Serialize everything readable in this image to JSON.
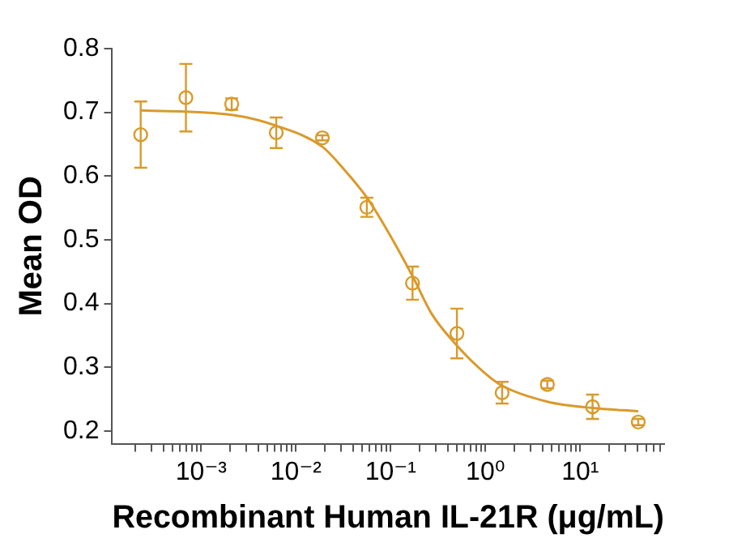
{
  "chart_data": {
    "type": "scatter",
    "xlabel": "Recombinant Human IL-21R (μg/mL)",
    "ylabel": "Mean OD",
    "log": "x",
    "grid": false,
    "legend": false,
    "xlim": [
      0.000115,
      77
    ],
    "ylim": [
      0.18,
      0.8
    ],
    "xticks": [
      {
        "value": 0.0002,
        "label": null
      },
      {
        "value": 0.0003,
        "label": null
      },
      {
        "value": 0.0004,
        "label": null
      },
      {
        "value": 0.0005,
        "label": null
      },
      {
        "value": 0.0006,
        "label": null
      },
      {
        "value": 0.0007,
        "label": null
      },
      {
        "value": 0.0008,
        "label": null
      },
      {
        "value": 0.0009,
        "label": null
      },
      {
        "value": 0.001,
        "label": "10⁻³"
      },
      {
        "value": 0.002,
        "label": null
      },
      {
        "value": 0.003,
        "label": null
      },
      {
        "value": 0.004,
        "label": null
      },
      {
        "value": 0.005,
        "label": null
      },
      {
        "value": 0.006,
        "label": null
      },
      {
        "value": 0.007,
        "label": null
      },
      {
        "value": 0.008,
        "label": null
      },
      {
        "value": 0.009,
        "label": null
      },
      {
        "value": 0.01,
        "label": "10⁻²"
      },
      {
        "value": 0.02,
        "label": null
      },
      {
        "value": 0.03,
        "label": null
      },
      {
        "value": 0.04,
        "label": null
      },
      {
        "value": 0.05,
        "label": null
      },
      {
        "value": 0.06,
        "label": null
      },
      {
        "value": 0.07,
        "label": null
      },
      {
        "value": 0.08,
        "label": null
      },
      {
        "value": 0.09,
        "label": null
      },
      {
        "value": 0.1,
        "label": "10⁻¹"
      },
      {
        "value": 0.2,
        "label": null
      },
      {
        "value": 0.3,
        "label": null
      },
      {
        "value": 0.4,
        "label": null
      },
      {
        "value": 0.5,
        "label": null
      },
      {
        "value": 0.6,
        "label": null
      },
      {
        "value": 0.7,
        "label": null
      },
      {
        "value": 0.8,
        "label": null
      },
      {
        "value": 0.9,
        "label": null
      },
      {
        "value": 1,
        "label": "10⁰"
      },
      {
        "value": 2,
        "label": null
      },
      {
        "value": 3,
        "label": null
      },
      {
        "value": 4,
        "label": null
      },
      {
        "value": 5,
        "label": null
      },
      {
        "value": 6,
        "label": null
      },
      {
        "value": 7,
        "label": null
      },
      {
        "value": 8,
        "label": null
      },
      {
        "value": 9,
        "label": null
      },
      {
        "value": 10,
        "label": "10¹"
      },
      {
        "value": 20,
        "label": null
      },
      {
        "value": 30,
        "label": null
      },
      {
        "value": 40,
        "label": null
      },
      {
        "value": 50,
        "label": null
      },
      {
        "value": 60,
        "label": null
      },
      {
        "value": 70,
        "label": null
      }
    ],
    "yticks": [
      0.2,
      0.3,
      0.4,
      0.5,
      0.6,
      0.7,
      0.8
    ],
    "series": [
      {
        "type": "scatter",
        "color": "#d99a2b",
        "marker": "circle",
        "x": [
          0.00023,
          0.00069,
          0.0021,
          0.0062,
          0.019,
          0.056,
          0.17,
          0.5,
          1.5,
          4.5,
          13.5,
          41
        ],
        "values": [
          0.665,
          0.723,
          0.713,
          0.668,
          0.66,
          0.551,
          0.432,
          0.353,
          0.26,
          0.273,
          0.238,
          0.214
        ],
        "errors": [
          0.052,
          0.053,
          0.009,
          0.024,
          0.004,
          0.015,
          0.026,
          0.039,
          0.017,
          0.006,
          0.019,
          0.005
        ]
      },
      {
        "type": "line",
        "color": "#d99a2b",
        "marker": "none",
        "x": [
          0.00023,
          0.0021,
          0.0062,
          0.019,
          0.032,
          0.055,
          0.087,
          0.17,
          0.27,
          0.5,
          1,
          1.5,
          4.5,
          13.5,
          41
        ],
        "values": [
          0.703,
          0.696,
          0.679,
          0.646,
          0.611,
          0.568,
          0.521,
          0.443,
          0.384,
          0.334,
          0.29,
          0.271,
          0.246,
          0.236,
          0.231
        ]
      }
    ]
  }
}
